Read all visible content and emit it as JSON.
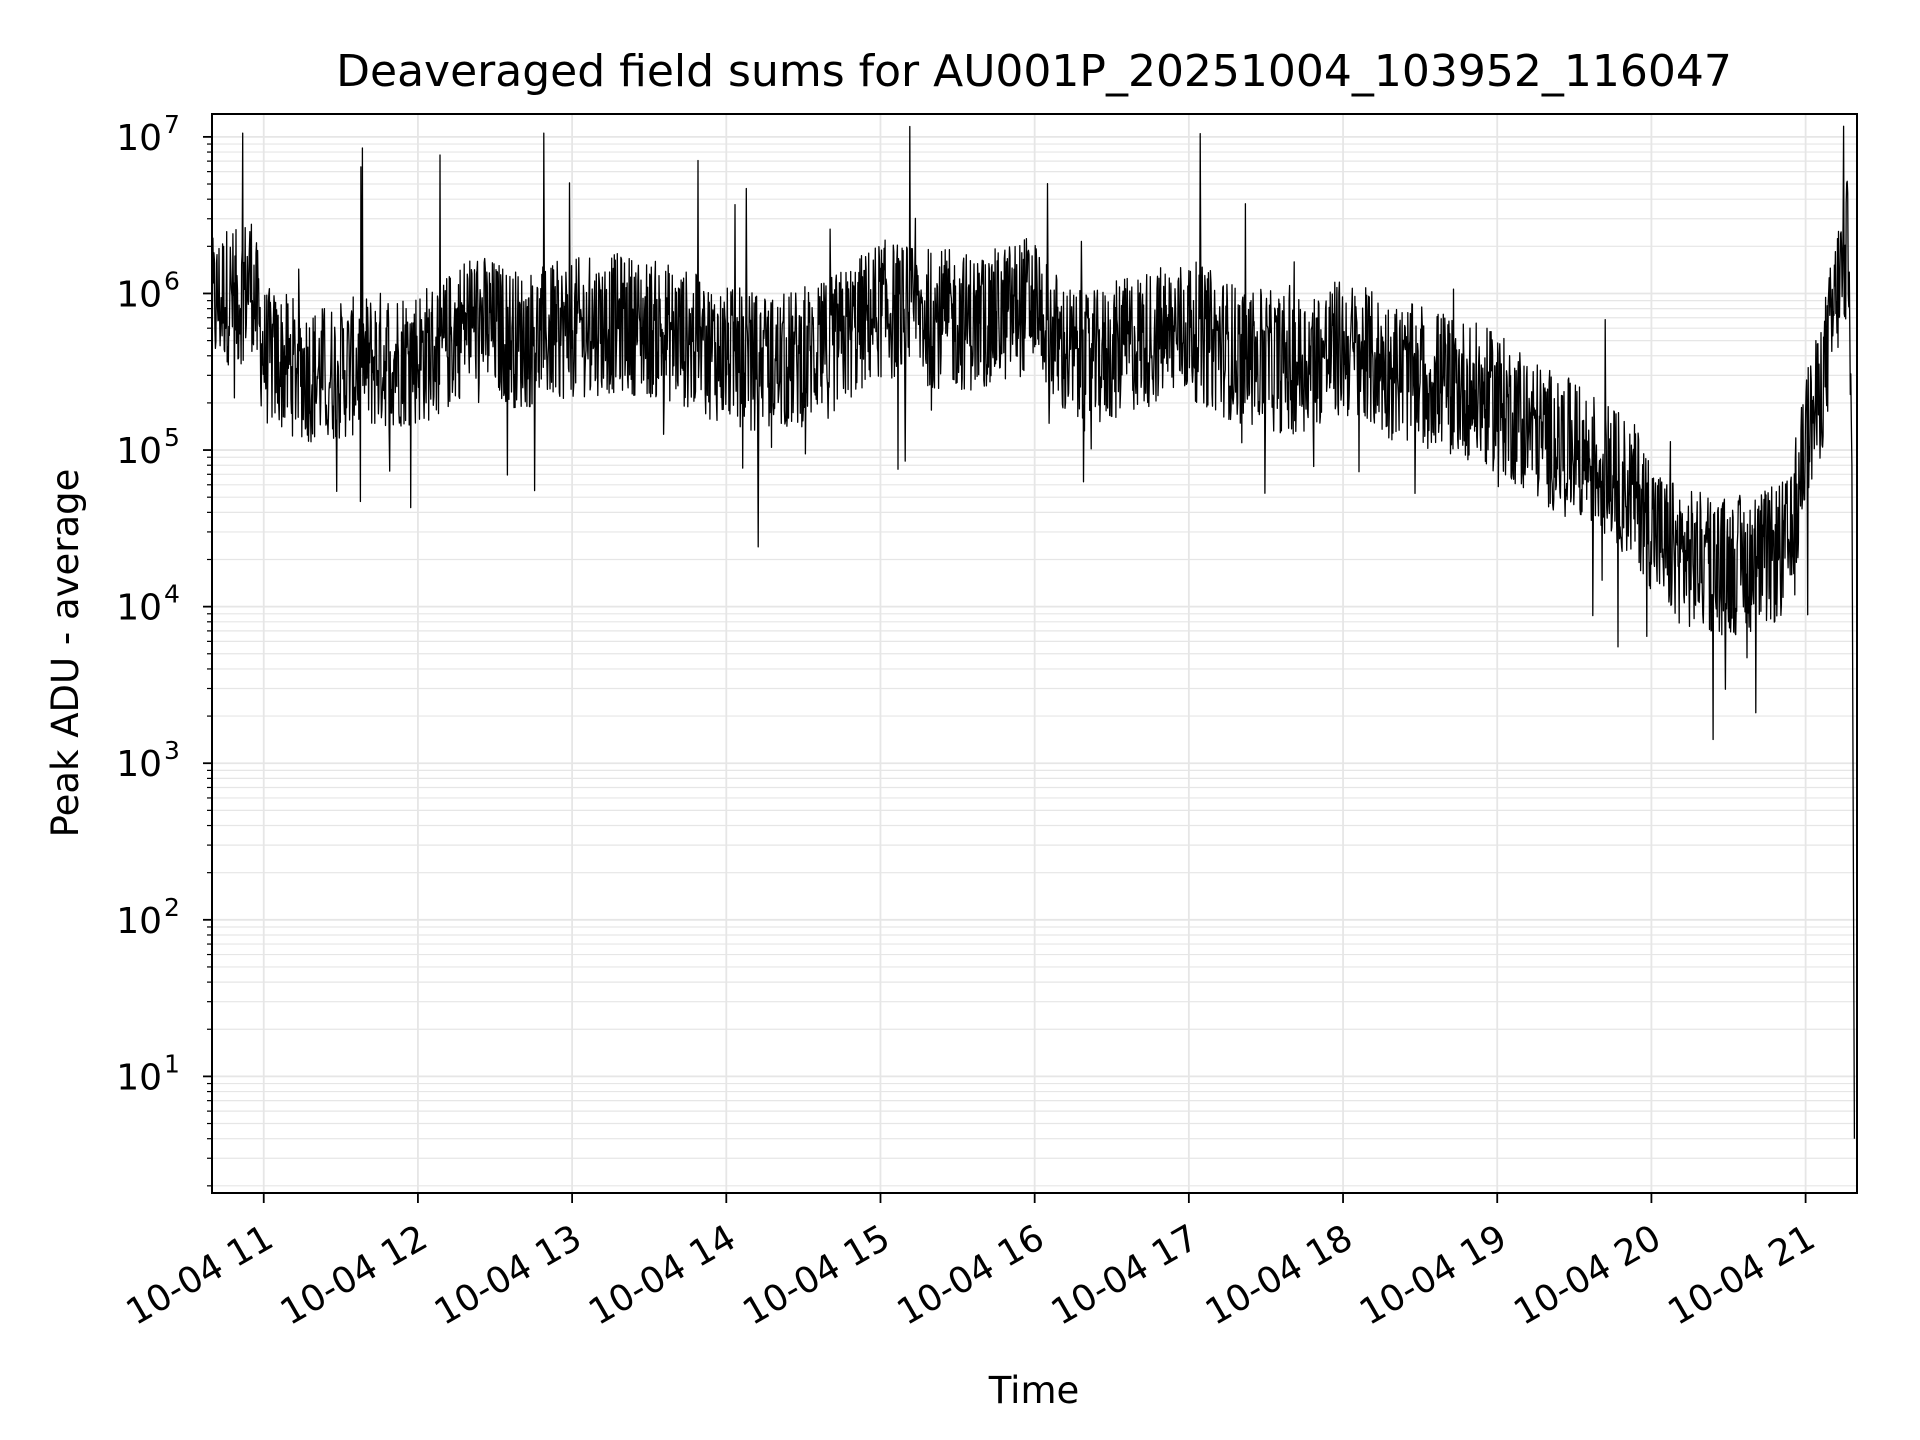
{
  "chart_data": {
    "type": "line",
    "title": "Deaveraged field sums for AU001P_20251004_103952_116047",
    "xlabel": "Time",
    "ylabel": "Peak ADU - average",
    "yscale": "log",
    "ylim": [
      1.8,
      14000000
    ],
    "xlim": [
      "2025-10-04 10:39:52",
      "2025-10-04 21:20:00"
    ],
    "x_tick_labels": [
      "10-04 11",
      "10-04 12",
      "10-04 13",
      "10-04 14",
      "10-04 15",
      "10-04 16",
      "10-04 17",
      "10-04 18",
      "10-04 19",
      "10-04 20",
      "10-04 21"
    ],
    "y_tick_labels": [
      {
        "base": "10",
        "exp": "1"
      },
      {
        "base": "10",
        "exp": "2"
      },
      {
        "base": "10",
        "exp": "3"
      },
      {
        "base": "10",
        "exp": "4"
      },
      {
        "base": "10",
        "exp": "5"
      },
      {
        "base": "10",
        "exp": "6"
      },
      {
        "base": "10",
        "exp": "7"
      }
    ],
    "grid": true,
    "line_color": "#000000",
    "grid_color": "#e6e6e6",
    "series": [
      {
        "x": [
          "2025-10-04 10:40",
          "2025-10-04 10:45",
          "2025-10-04 10:50",
          "2025-10-04 10:55",
          "2025-10-04 11:00",
          "2025-10-04 11:10",
          "2025-10-04 11:20",
          "2025-10-04 11:30",
          "2025-10-04 11:45",
          "2025-10-04 12:00",
          "2025-10-04 12:10",
          "2025-10-04 12:20",
          "2025-10-04 12:40",
          "2025-10-04 13:00",
          "2025-10-04 13:20",
          "2025-10-04 13:40",
          "2025-10-04 14:00",
          "2025-10-04 14:20",
          "2025-10-04 14:40",
          "2025-10-04 15:00",
          "2025-10-04 15:20",
          "2025-10-04 15:40",
          "2025-10-04 16:00",
          "2025-10-04 16:10",
          "2025-10-04 16:20",
          "2025-10-04 16:40",
          "2025-10-04 17:00",
          "2025-10-04 17:20",
          "2025-10-04 17:40",
          "2025-10-04 18:00",
          "2025-10-04 18:20",
          "2025-10-04 18:40",
          "2025-10-04 19:00",
          "2025-10-04 19:20",
          "2025-10-04 19:40",
          "2025-10-04 19:55",
          "2025-10-04 20:05",
          "2025-10-04 20:15",
          "2025-10-04 20:30",
          "2025-10-04 20:45",
          "2025-10-04 20:55",
          "2025-10-04 21:00",
          "2025-10-04 21:05",
          "2025-10-04 21:10",
          "2025-10-04 21:13",
          "2025-10-04 21:15",
          "2025-10-04 21:17",
          "2025-10-04 21:18",
          "2025-10-04 21:19"
        ],
        "y": [
          800000,
          1000000,
          900000,
          1300000,
          400000,
          350000,
          300000,
          320000,
          380000,
          400000,
          450000,
          700000,
          500000,
          600000,
          650000,
          550000,
          400000,
          350000,
          450000,
          800000,
          700000,
          650000,
          900000,
          450000,
          350000,
          500000,
          600000,
          400000,
          350000,
          450000,
          320000,
          280000,
          200000,
          120000,
          80000,
          50000,
          25000,
          20000,
          18000,
          20000,
          25000,
          120000,
          200000,
          600000,
          1200000,
          1500000,
          2300000,
          80000,
          4
        ]
      }
    ]
  }
}
